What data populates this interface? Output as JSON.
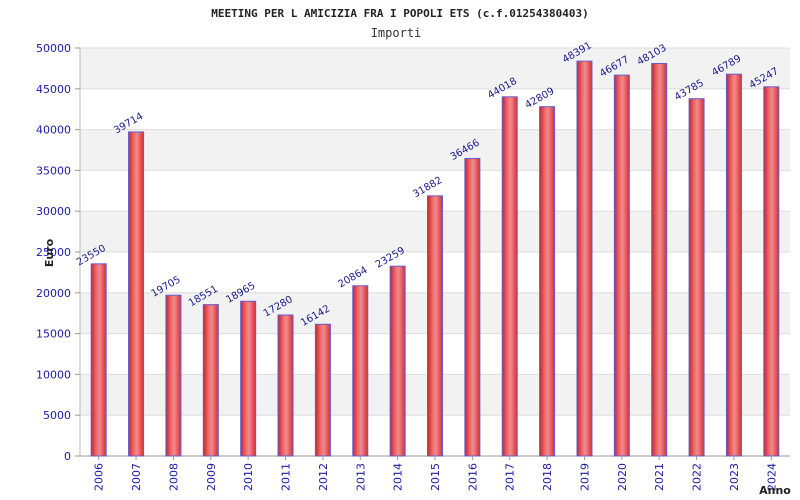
{
  "chart_data": {
    "type": "bar",
    "title": "MEETING PER L AMICIZIA FRA I POPOLI ETS (c.f.01254380403)",
    "subtitle": "Importi",
    "xlabel": "Anno",
    "ylabel": "Euro",
    "categories": [
      "2006",
      "2007",
      "2008",
      "2009",
      "2010",
      "2011",
      "2012",
      "2013",
      "2014",
      "2015",
      "2016",
      "2017",
      "2018",
      "2019",
      "2020",
      "2021",
      "2022",
      "2023",
      "2024"
    ],
    "values": [
      23550,
      39714,
      19705,
      18551,
      18965,
      17280,
      16142,
      20864,
      23259,
      31882,
      36466,
      44018,
      42809,
      48391,
      46677,
      48103,
      43785,
      46789,
      45247
    ],
    "ylim": [
      0,
      50000
    ],
    "yticks": [
      0,
      5000,
      10000,
      15000,
      20000,
      25000,
      30000,
      35000,
      40000,
      45000,
      50000
    ],
    "grid": true,
    "bar_color": "#e03a3e",
    "bar_edge_color": "#6a5acd",
    "tick_color": "#1a1aa6"
  }
}
